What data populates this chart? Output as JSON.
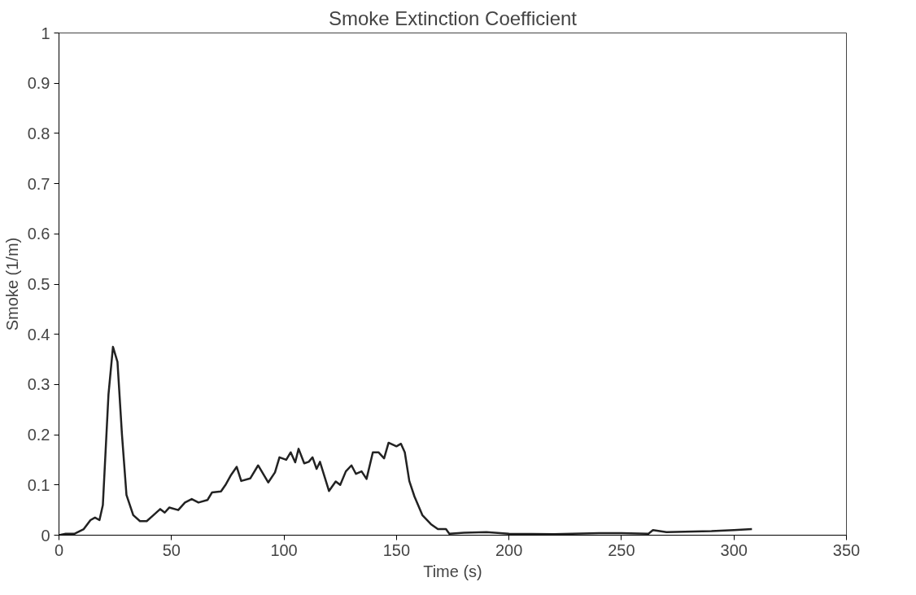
{
  "chart_data": {
    "type": "line",
    "title": "Smoke Extinction Coefficient",
    "xlabel": "Time (s)",
    "ylabel": "Smoke (1/m)",
    "xlim": [
      0,
      350
    ],
    "ylim": [
      0,
      1
    ],
    "xticks": [
      0,
      50,
      100,
      150,
      200,
      250,
      300,
      350
    ],
    "yticks": [
      0,
      0.1,
      0.2,
      0.3,
      0.4,
      0.5,
      0.6,
      0.7,
      0.8,
      0.9,
      1
    ],
    "grid": false,
    "marker": "none",
    "line_style": "solid",
    "series": [
      {
        "color": "#222222",
        "x": [
          0,
          3,
          7,
          11,
          14,
          16,
          18,
          19.5,
          22,
          24,
          26,
          28,
          30,
          33,
          36,
          39,
          42,
          45,
          47,
          49,
          53,
          56,
          59,
          62,
          66,
          68,
          72,
          74,
          76.5,
          79,
          81,
          85,
          88.5,
          93,
          96,
          98,
          101,
          103,
          105,
          106.5,
          109,
          111,
          112.7,
          114.5,
          116,
          120,
          123,
          125,
          127.5,
          130,
          132,
          134.5,
          136.7,
          139.5,
          142,
          144.5,
          146.5,
          150,
          152,
          153.7,
          155.7,
          158,
          161.5,
          165.3,
          168.4,
          172,
          173.5,
          180,
          190,
          200,
          220,
          240,
          250,
          262,
          264,
          270,
          290,
          300,
          308
        ],
        "values": [
          0,
          0.003,
          0.003,
          0.012,
          0.03,
          0.035,
          0.03,
          0.06,
          0.28,
          0.375,
          0.345,
          0.2,
          0.08,
          0.04,
          0.028,
          0.028,
          0.04,
          0.052,
          0.045,
          0.055,
          0.05,
          0.065,
          0.072,
          0.065,
          0.07,
          0.085,
          0.087,
          0.1,
          0.12,
          0.136,
          0.108,
          0.113,
          0.139,
          0.105,
          0.125,
          0.155,
          0.15,
          0.165,
          0.145,
          0.172,
          0.143,
          0.146,
          0.155,
          0.132,
          0.146,
          0.088,
          0.107,
          0.1,
          0.127,
          0.139,
          0.122,
          0.127,
          0.112,
          0.165,
          0.165,
          0.153,
          0.184,
          0.177,
          0.182,
          0.165,
          0.108,
          0.077,
          0.04,
          0.022,
          0.012,
          0.012,
          0.003,
          0.005,
          0.006,
          0.003,
          0.002,
          0.004,
          0.004,
          0.003,
          0.01,
          0.006,
          0.008,
          0.01,
          0.012
        ]
      }
    ]
  }
}
